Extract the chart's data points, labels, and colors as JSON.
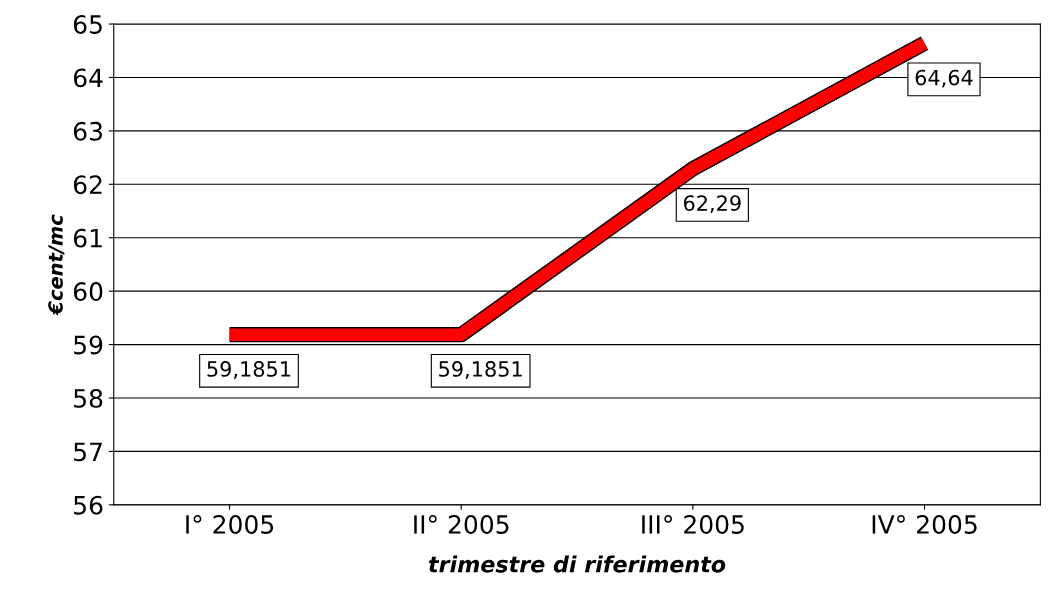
{
  "chart_data": {
    "type": "line",
    "xlabel": "trimestre di riferimento",
    "ylabel": "€cent/mc",
    "categories": [
      "I° 2005",
      "II° 2005",
      "III° 2005",
      "IV° 2005"
    ],
    "series": [
      {
        "color": "#ff0000",
        "values": [
          59.1851,
          59.1851,
          62.29,
          64.64
        ],
        "value_labels": [
          "59,1851",
          "59,1851",
          "62,29",
          "64,64"
        ]
      }
    ],
    "ylim": [
      56,
      65
    ],
    "yticks": [
      56,
      57,
      58,
      59,
      60,
      61,
      62,
      63,
      64,
      65
    ],
    "grid": "y",
    "line_style": "solid"
  }
}
